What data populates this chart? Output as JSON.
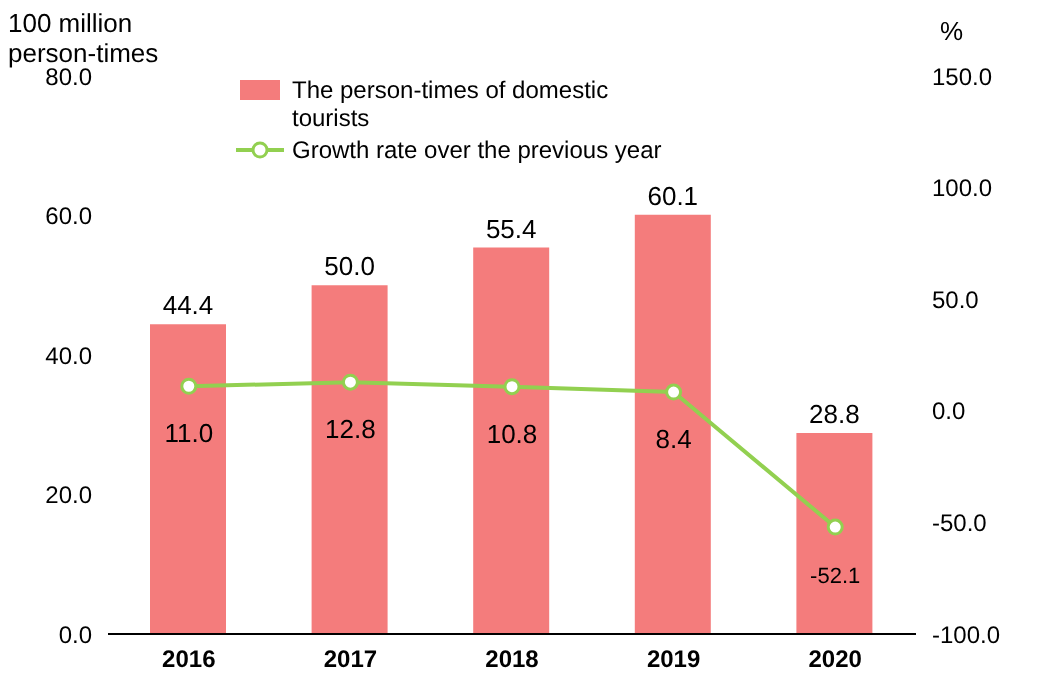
{
  "chart_data": {
    "type": "bar",
    "ylabel": "100 million person-times",
    "y2label": "%",
    "categories": [
      "2016",
      "2017",
      "2018",
      "2019",
      "2020"
    ],
    "series": [
      {
        "name": "The person-times of domestic tourists",
        "color": "#f47c7c",
        "values": [
          44.4,
          50.0,
          55.4,
          60.1,
          28.8
        ],
        "value_labels": [
          "44.4",
          "50.0",
          "55.4",
          "60.1",
          "28.8"
        ]
      },
      {
        "name": "Growth rate over the previous year",
        "type": "line",
        "axis": "y2",
        "color": "#92d050",
        "marker": "circle",
        "values": [
          11.0,
          12.8,
          10.8,
          8.4,
          -52.1
        ],
        "value_labels": [
          "11.0",
          "12.8",
          "10.8",
          "8.4",
          "-52.1"
        ]
      }
    ],
    "ylim": [
      0,
      80
    ],
    "yticks": [
      {
        "value": 0,
        "label": "0.0"
      },
      {
        "value": 20,
        "label": "20.0"
      },
      {
        "value": 40,
        "label": "40.0"
      },
      {
        "value": 60,
        "label": "60.0"
      },
      {
        "value": 80,
        "label": "80.0"
      }
    ],
    "y2lim": [
      -100,
      150
    ],
    "y2ticks": [
      {
        "value": -100,
        "label": "-100.0"
      },
      {
        "value": -50,
        "label": "-50.0"
      },
      {
        "value": 0,
        "label": "0.0"
      },
      {
        "value": 50,
        "label": "50.0"
      },
      {
        "value": 100,
        "label": "100.0"
      },
      {
        "value": 150,
        "label": "150.0"
      }
    ],
    "grid": false,
    "legend": "top left"
  }
}
